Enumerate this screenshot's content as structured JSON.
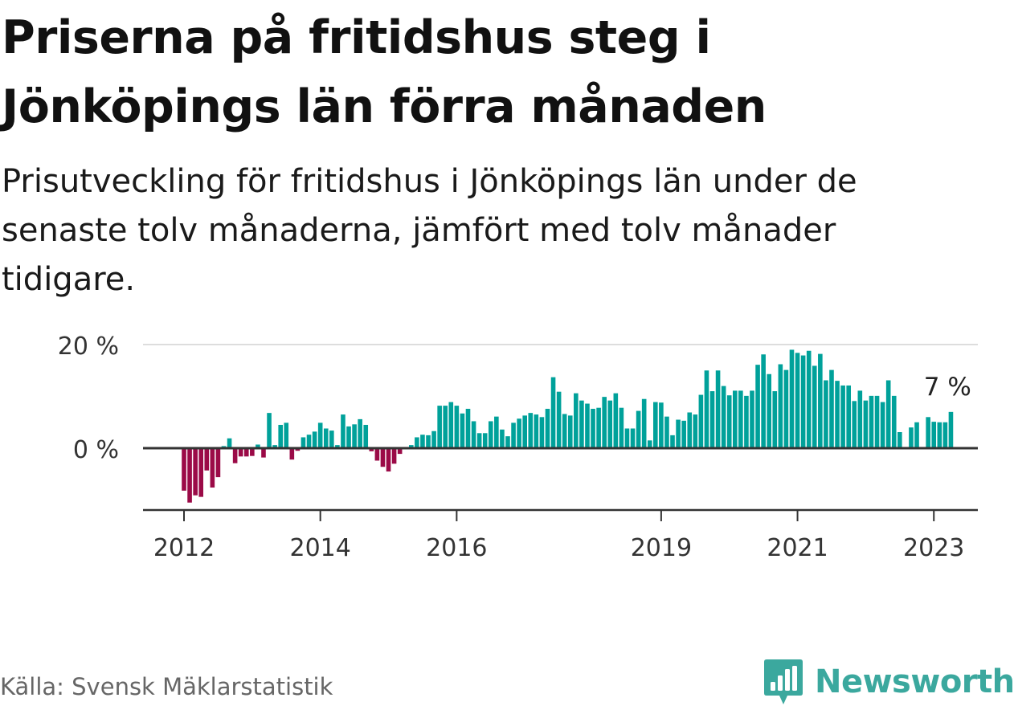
{
  "title": "Priserna på fritidshus steg i Jönköpings län förra månaden",
  "subtitle": "Prisutveckling för fritidshus i Jönköpings län under de senaste tolv månaderna, jämfört med tolv månader tidigare.",
  "source": "Källa: Svensk Mäklarstatistik",
  "brand": {
    "name": "Newsworthy",
    "icon": "newsworthy-logo-icon",
    "color": "#3ba89e"
  },
  "colors": {
    "positive": "#00a19a",
    "negative": "#9b0a47",
    "grid": "#dddddd",
    "axis": "#333333"
  },
  "chart_data": {
    "type": "bar",
    "start": "2012-01",
    "unit": "%",
    "ylim": [
      -12,
      22
    ],
    "yticks": [
      {
        "value": 0,
        "label": "0 %"
      },
      {
        "value": 20,
        "label": "20 %"
      }
    ],
    "xticks": [
      {
        "index": 0,
        "label": "2012"
      },
      {
        "index": 24,
        "label": "2014"
      },
      {
        "index": 48,
        "label": "2016"
      },
      {
        "index": 84,
        "label": "2019"
      },
      {
        "index": 108,
        "label": "2021"
      },
      {
        "index": 132,
        "label": "2023"
      }
    ],
    "annotation": {
      "index": 133,
      "label": "7 %"
    },
    "values": [
      -8.2,
      -10.5,
      -9.1,
      -9.4,
      -4.3,
      -7.6,
      -5.6,
      0.4,
      1.9,
      -2.9,
      -1.6,
      -1.6,
      -1.5,
      0.7,
      -1.8,
      6.8,
      0.6,
      4.5,
      4.9,
      -2.2,
      -0.5,
      2.1,
      2.6,
      3.2,
      4.9,
      3.8,
      3.4,
      0.6,
      6.5,
      4.2,
      4.6,
      5.6,
      4.5,
      -0.6,
      -2.4,
      -3.6,
      -4.5,
      -3.0,
      -1.1,
      0,
      0.6,
      2.1,
      2.6,
      2.5,
      3.3,
      8.2,
      8.2,
      8.9,
      8.2,
      6.7,
      7.6,
      5.2,
      2.9,
      2.9,
      5.2,
      6.1,
      3.6,
      2.3,
      4.9,
      5.7,
      6.3,
      6.8,
      6.5,
      6.0,
      7.6,
      13.7,
      10.9,
      6.6,
      6.3,
      10.6,
      9.2,
      8.6,
      7.6,
      7.8,
      9.9,
      9.2,
      10.6,
      7.8,
      3.8,
      3.8,
      7.2,
      9.5,
      1.5,
      8.9,
      8.8,
      6.1,
      2.5,
      5.5,
      5.3,
      6.9,
      6.5,
      10.3,
      15.0,
      11.0,
      15.0,
      12.0,
      10.2,
      11.1,
      11.1,
      10.1,
      11.1,
      16.1,
      18.1,
      14.3,
      11.0,
      16.2,
      15.1,
      19.0,
      18.4,
      17.9,
      18.8,
      15.9,
      18.2,
      13.1,
      15.1,
      13.0,
      12.1,
      12.1,
      9.1,
      11.1,
      9.2,
      10.1,
      10.1,
      8.9,
      13.1,
      10.1,
      3.1,
      null,
      4.0,
      5.0,
      null,
      6.0,
      5.1,
      5.0,
      5.0,
      7.0
    ]
  }
}
